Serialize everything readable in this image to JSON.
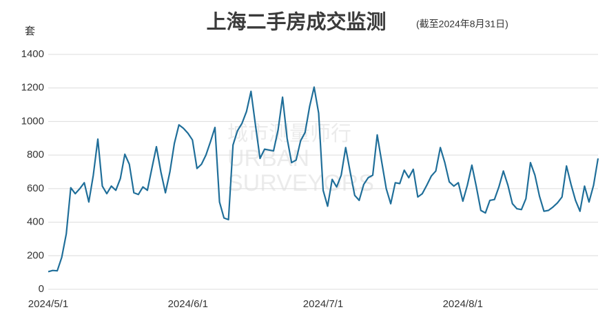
{
  "chart_data": {
    "type": "line",
    "title": "上海二手房成交监测",
    "subtitle": "(截至2024年8月31日)",
    "y_label": "套",
    "watermark": [
      "城市测量师行",
      "URBAN",
      "SURVEYORS"
    ],
    "x": [
      "2024/5/1",
      "2024/5/2",
      "2024/5/3",
      "2024/5/4",
      "2024/5/5",
      "2024/5/6",
      "2024/5/7",
      "2024/5/8",
      "2024/5/9",
      "2024/5/10",
      "2024/5/11",
      "2024/5/12",
      "2024/5/13",
      "2024/5/14",
      "2024/5/15",
      "2024/5/16",
      "2024/5/17",
      "2024/5/18",
      "2024/5/19",
      "2024/5/20",
      "2024/5/21",
      "2024/5/22",
      "2024/5/23",
      "2024/5/24",
      "2024/5/25",
      "2024/5/26",
      "2024/5/27",
      "2024/5/28",
      "2024/5/29",
      "2024/5/30",
      "2024/5/31",
      "2024/6/1",
      "2024/6/2",
      "2024/6/3",
      "2024/6/4",
      "2024/6/5",
      "2024/6/6",
      "2024/6/7",
      "2024/6/8",
      "2024/6/9",
      "2024/6/10",
      "2024/6/11",
      "2024/6/12",
      "2024/6/13",
      "2024/6/14",
      "2024/6/15",
      "2024/6/16",
      "2024/6/17",
      "2024/6/18",
      "2024/6/19",
      "2024/6/20",
      "2024/6/21",
      "2024/6/22",
      "2024/6/23",
      "2024/6/24",
      "2024/6/25",
      "2024/6/26",
      "2024/6/27",
      "2024/6/28",
      "2024/6/29",
      "2024/6/30",
      "2024/7/1",
      "2024/7/2",
      "2024/7/3",
      "2024/7/4",
      "2024/7/5",
      "2024/7/6",
      "2024/7/7",
      "2024/7/8",
      "2024/7/9",
      "2024/7/10",
      "2024/7/11",
      "2024/7/12",
      "2024/7/13",
      "2024/7/14",
      "2024/7/15",
      "2024/7/16",
      "2024/7/17",
      "2024/7/18",
      "2024/7/19",
      "2024/7/20",
      "2024/7/21",
      "2024/7/22",
      "2024/7/23",
      "2024/7/24",
      "2024/7/25",
      "2024/7/26",
      "2024/7/27",
      "2024/7/28",
      "2024/7/29",
      "2024/7/30",
      "2024/7/31",
      "2024/8/1",
      "2024/8/2",
      "2024/8/3",
      "2024/8/4",
      "2024/8/5",
      "2024/8/6",
      "2024/8/7",
      "2024/8/8",
      "2024/8/9",
      "2024/8/10",
      "2024/8/11",
      "2024/8/12",
      "2024/8/13",
      "2024/8/14",
      "2024/8/15",
      "2024/8/16",
      "2024/8/17",
      "2024/8/18",
      "2024/8/19",
      "2024/8/20",
      "2024/8/21",
      "2024/8/22",
      "2024/8/23",
      "2024/8/24",
      "2024/8/25",
      "2024/8/26",
      "2024/8/27",
      "2024/8/28",
      "2024/8/29",
      "2024/8/30",
      "2024/8/31"
    ],
    "series": [
      {
        "color": "#1f6e99",
        "values": [
          105,
          112,
          110,
          190,
          330,
          605,
          570,
          600,
          635,
          520,
          680,
          895,
          615,
          570,
          615,
          590,
          660,
          805,
          745,
          575,
          565,
          610,
          590,
          720,
          850,
          700,
          575,
          700,
          870,
          980,
          960,
          930,
          890,
          720,
          745,
          800,
          880,
          965,
          520,
          425,
          415,
          860,
          945,
          990,
          1060,
          1180,
          975,
          780,
          835,
          830,
          825,
          950,
          1145,
          900,
          755,
          770,
          885,
          935,
          1090,
          1205,
          1050,
          590,
          495,
          655,
          610,
          680,
          845,
          700,
          560,
          530,
          625,
          665,
          680,
          920,
          760,
          600,
          510,
          635,
          630,
          710,
          665,
          715,
          550,
          570,
          620,
          675,
          705,
          845,
          755,
          640,
          615,
          635,
          525,
          620,
          740,
          610,
          470,
          455,
          530,
          535,
          610,
          705,
          620,
          510,
          480,
          475,
          540,
          755,
          680,
          555,
          465,
          470,
          490,
          515,
          550,
          735,
          625,
          530,
          465,
          615,
          520,
          620,
          780
        ]
      }
    ],
    "xticks": [
      "2024/5/1",
      "2024/6/1",
      "2024/7/1",
      "2024/8/1"
    ],
    "ylim": [
      0,
      1400
    ],
    "yticks": [
      0,
      200,
      400,
      600,
      800,
      1000,
      1200,
      1400
    ],
    "grid": true
  }
}
